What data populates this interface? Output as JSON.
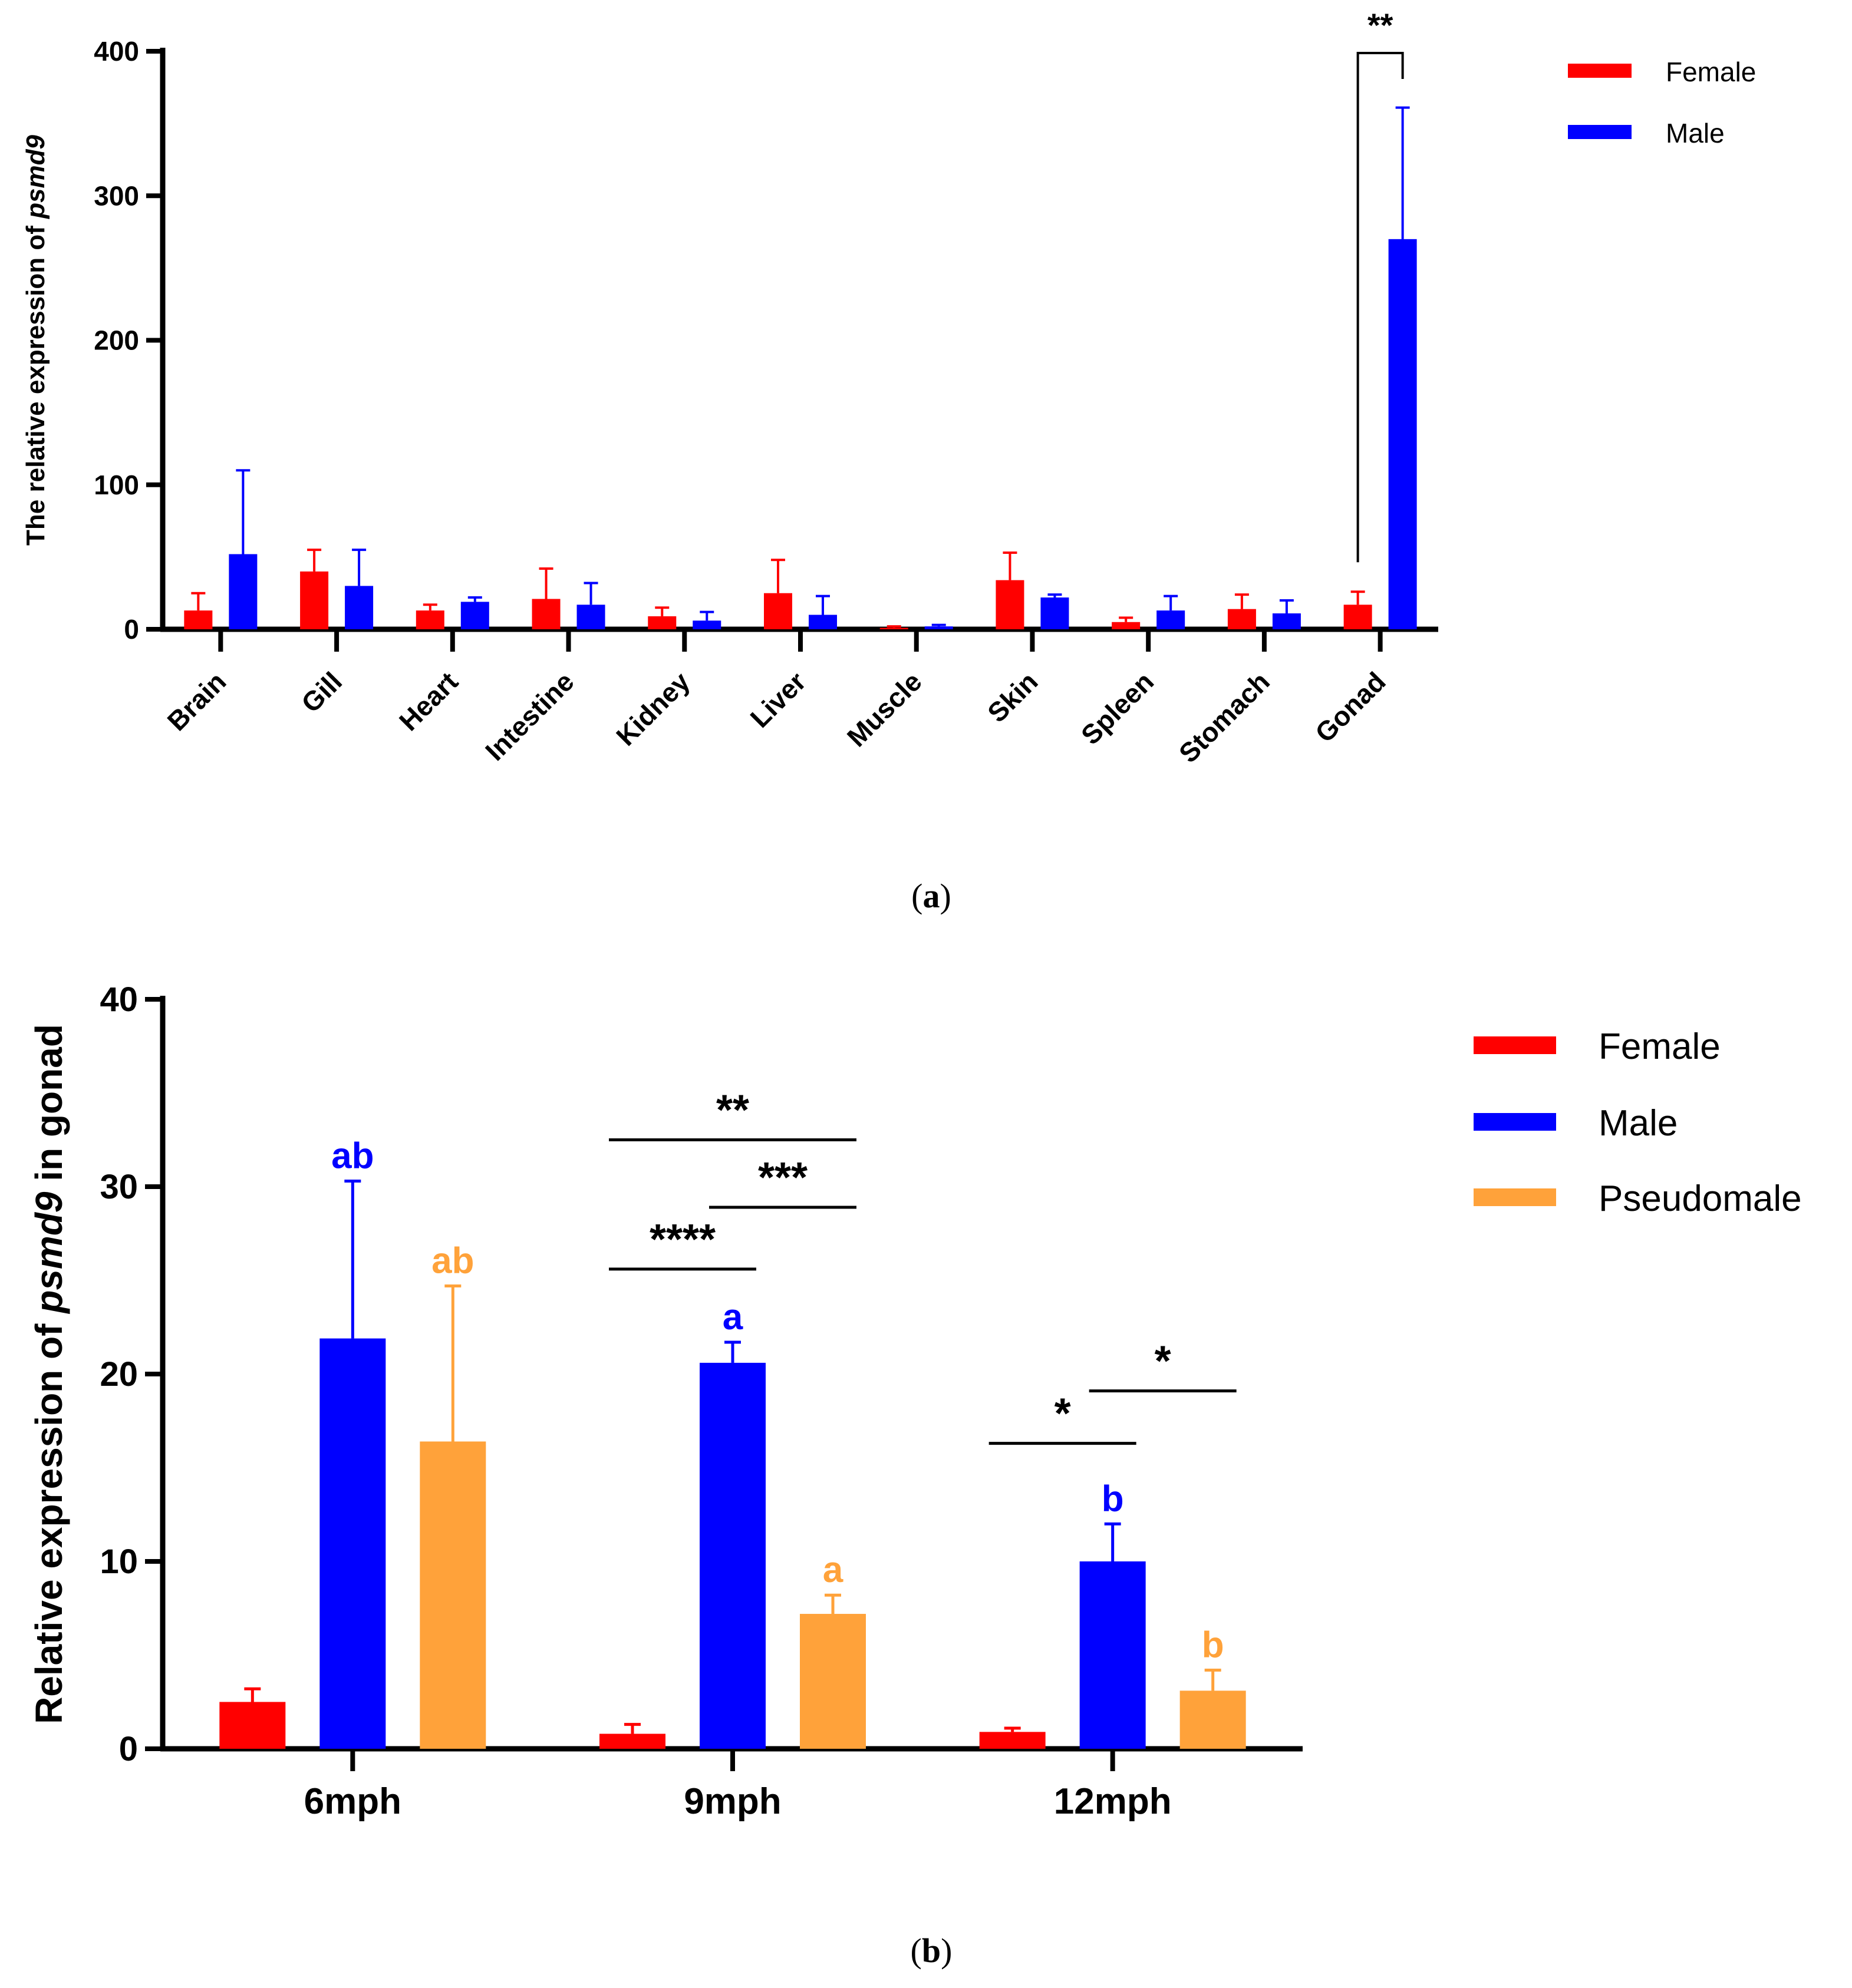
{
  "chart_data": [
    {
      "panel": "a",
      "type": "bar",
      "caption_open": "(",
      "caption_letter": "a",
      "caption_close": ")",
      "ylabel_prefix": "The relative expression of ",
      "ylabel_gene": "psmd9",
      "ylim": [
        0,
        400
      ],
      "yticks": [
        "0",
        "100",
        "200",
        "300",
        "400"
      ],
      "categories": [
        "Brain",
        "Gill",
        "Heart",
        "Intestine",
        "Kidney",
        "Liver",
        "Muscle",
        "Skin",
        "Spleen",
        "Stomach",
        "Gonad"
      ],
      "series": [
        {
          "name": "Female",
          "color": "#ff0000",
          "values": [
            13,
            40,
            13,
            21,
            9,
            25,
            1,
            34,
            5,
            14,
            17
          ],
          "errors": [
            12,
            15,
            4,
            21,
            6,
            23,
            1,
            19,
            3,
            10,
            9
          ]
        },
        {
          "name": "Male",
          "color": "#0000ff",
          "values": [
            52,
            30,
            19,
            17,
            6,
            10,
            2,
            22,
            13,
            11,
            270
          ],
          "errors": [
            58,
            25,
            3,
            15,
            6,
            13,
            1,
            2,
            10,
            9,
            91
          ]
        }
      ],
      "annotations": [
        {
          "text": "**",
          "category": "Gonad"
        }
      ],
      "legend": {
        "position": "top-right",
        "items": [
          "Female",
          "Male"
        ]
      }
    },
    {
      "panel": "b",
      "type": "bar",
      "caption_open": "(",
      "caption_letter": "b",
      "caption_close": ")",
      "ylabel_prefix": "Relative expression of ",
      "ylabel_gene": "psmd9",
      "ylabel_suffix": " in gonad",
      "ylim": [
        0,
        40
      ],
      "yticks": [
        "0",
        "10",
        "20",
        "30",
        "40"
      ],
      "categories": [
        "6mph",
        "9mph",
        "12mph"
      ],
      "series": [
        {
          "name": "Female",
          "color": "#ff0000",
          "values": [
            2.5,
            0.8,
            0.9
          ],
          "errors": [
            0.7,
            0.5,
            0.2
          ],
          "letters": [
            "",
            "",
            ""
          ]
        },
        {
          "name": "Male",
          "color": "#0000ff",
          "values": [
            21.9,
            20.6,
            10.0
          ],
          "errors": [
            8.4,
            1.1,
            2.0
          ],
          "letters": [
            "ab",
            "a",
            "b"
          ]
        },
        {
          "name": "Pseudomale",
          "color": "#ffa23a",
          "values": [
            16.4,
            7.2,
            3.1
          ],
          "errors": [
            8.3,
            1.0,
            1.1
          ],
          "letters": [
            "ab",
            "a",
            "b"
          ]
        }
      ],
      "significance": [
        {
          "text": "**",
          "category": "9mph",
          "from": "Female",
          "to": "Pseudomale",
          "y": 32.5
        },
        {
          "text": "***",
          "category": "9mph",
          "from": "Male",
          "to": "Pseudomale",
          "y": 28.9
        },
        {
          "text": "****",
          "category": "9mph",
          "from": "Female",
          "to": "Male",
          "y": 25.6
        },
        {
          "text": "*",
          "category": "12mph",
          "from": "Female",
          "to": "Male",
          "y": 16.3
        },
        {
          "text": "*",
          "category": "12mph",
          "from": "Male",
          "to": "Pseudomale",
          "y": 19.1
        }
      ],
      "legend": {
        "position": "top-right",
        "items": [
          "Female",
          "Male",
          "Pseudomale"
        ]
      }
    }
  ]
}
